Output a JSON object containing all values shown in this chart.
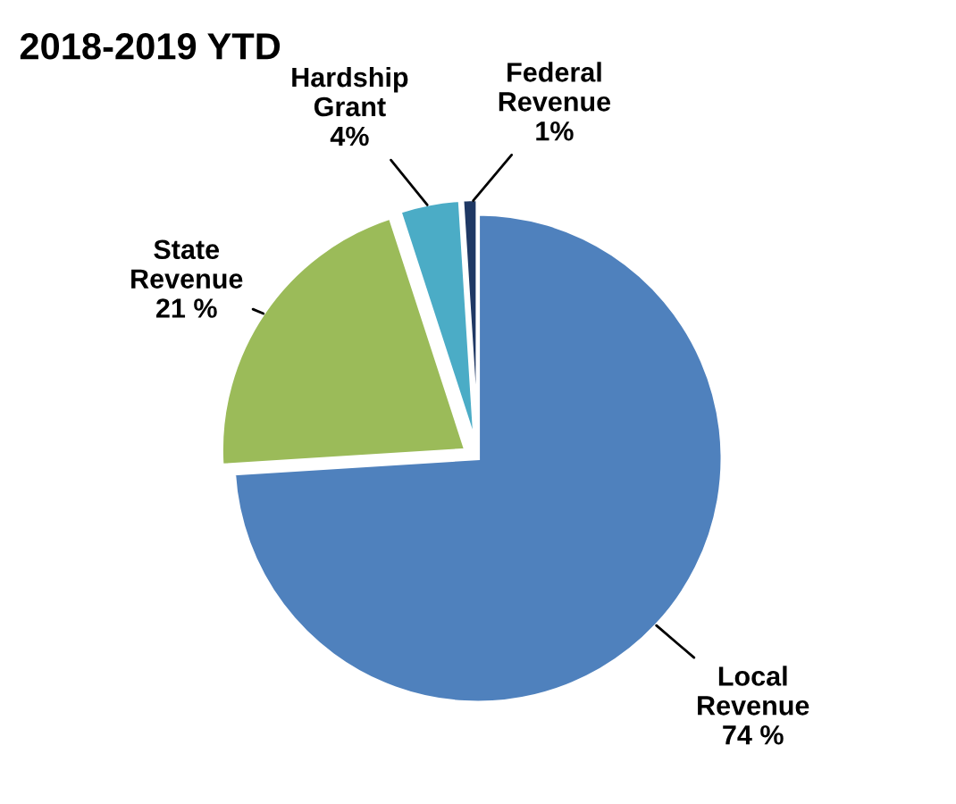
{
  "chart_data": {
    "type": "pie",
    "title": "2018-2019 YTD",
    "categories": [
      "Local Revenue",
      "State Revenue",
      "Hardship Grant",
      "Federal Revenue"
    ],
    "values": [
      74,
      21,
      4,
      1
    ],
    "value_labels": [
      "74 %",
      "21 %",
      "4%",
      "1%"
    ],
    "colors": [
      "#4f81bd",
      "#9bbb59",
      "#4bacc6",
      "#1f3864"
    ],
    "legend": false
  }
}
